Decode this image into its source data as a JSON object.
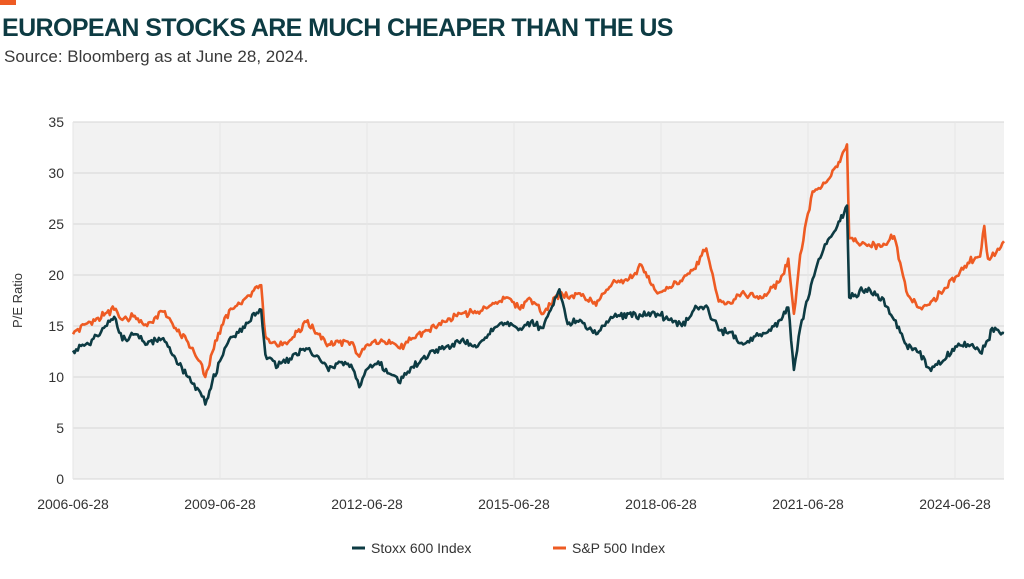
{
  "title": "EUROPEAN STOCKS ARE MUCH CHEAPER THAN THE US",
  "subtitle": "Source: Bloomberg as at June 28, 2024.",
  "colors": {
    "accent": "#ee5b23",
    "title": "#0d3b43",
    "plot_background": "#f2f2f2",
    "gridline": "#d6d6d6"
  },
  "chart_data": {
    "type": "line",
    "title": "EUROPEAN STOCKS ARE MUCH CHEAPER THAN THE US",
    "xlabel": "",
    "ylabel": "P/E Ratio",
    "ylim": [
      0,
      35
    ],
    "yticks": [
      0,
      5,
      10,
      15,
      20,
      25,
      30,
      35
    ],
    "xlim": [
      "2006-06-28",
      "2025-06-28"
    ],
    "xticks": [
      "2006-06-28",
      "2009-06-28",
      "2012-06-28",
      "2015-06-28",
      "2018-06-28",
      "2021-06-28",
      "2024-06-28"
    ],
    "grid": true,
    "legend_position": "bottom",
    "series": [
      {
        "name": "Stoxx 600 Index",
        "color": "#0d3b43",
        "points": [
          [
            "2006-06-28",
            12.6
          ],
          [
            "2006-10-01",
            13.2
          ],
          [
            "2007-01-01",
            14.0
          ],
          [
            "2007-05-01",
            15.9
          ],
          [
            "2007-07-01",
            13.6
          ],
          [
            "2007-10-01",
            14.2
          ],
          [
            "2008-01-01",
            13.2
          ],
          [
            "2008-05-01",
            13.8
          ],
          [
            "2008-08-01",
            11.8
          ],
          [
            "2008-11-01",
            10.0
          ],
          [
            "2009-02-01",
            8.5
          ],
          [
            "2009-03-10",
            7.3
          ],
          [
            "2009-05-01",
            9.5
          ],
          [
            "2009-08-01",
            12.8
          ],
          [
            "2009-11-01",
            14.4
          ],
          [
            "2010-02-01",
            15.4
          ],
          [
            "2010-05-01",
            16.6
          ],
          [
            "2010-06-01",
            12.2
          ],
          [
            "2010-09-01",
            11.0
          ],
          [
            "2010-12-01",
            11.8
          ],
          [
            "2011-04-01",
            12.8
          ],
          [
            "2011-07-01",
            12.0
          ],
          [
            "2011-09-15",
            10.6
          ],
          [
            "2011-12-01",
            11.5
          ],
          [
            "2012-03-01",
            11.2
          ],
          [
            "2012-05-01",
            9.0
          ],
          [
            "2012-07-01",
            10.8
          ],
          [
            "2012-10-01",
            11.2
          ],
          [
            "2013-01-01",
            10.2
          ],
          [
            "2013-03-01",
            9.4
          ],
          [
            "2013-06-01",
            11.0
          ],
          [
            "2013-10-01",
            12.2
          ],
          [
            "2014-02-01",
            12.9
          ],
          [
            "2014-06-01",
            13.6
          ],
          [
            "2014-10-01",
            13.0
          ],
          [
            "2015-02-01",
            14.8
          ],
          [
            "2015-05-01",
            15.2
          ],
          [
            "2015-08-01",
            14.6
          ],
          [
            "2015-11-01",
            15.4
          ],
          [
            "2016-02-01",
            14.8
          ],
          [
            "2016-06-01",
            18.6
          ],
          [
            "2016-08-01",
            15.2
          ],
          [
            "2016-11-01",
            15.6
          ],
          [
            "2017-03-01",
            14.2
          ],
          [
            "2017-07-01",
            15.8
          ],
          [
            "2017-11-01",
            16.2
          ],
          [
            "2018-02-01",
            16.0
          ],
          [
            "2018-06-01",
            16.2
          ],
          [
            "2018-09-01",
            15.6
          ],
          [
            "2018-12-01",
            15.0
          ],
          [
            "2019-03-01",
            16.6
          ],
          [
            "2019-06-01",
            17.0
          ],
          [
            "2019-09-01",
            14.6
          ],
          [
            "2019-12-01",
            14.4
          ],
          [
            "2020-03-01",
            13.2
          ],
          [
            "2020-06-01",
            14.0
          ],
          [
            "2020-09-01",
            14.4
          ],
          [
            "2020-12-01",
            15.6
          ],
          [
            "2021-02-01",
            16.8
          ],
          [
            "2021-03-15",
            10.7
          ],
          [
            "2021-05-01",
            14.8
          ],
          [
            "2021-08-01",
            19.6
          ],
          [
            "2021-11-01",
            23.0
          ],
          [
            "2022-02-01",
            24.8
          ],
          [
            "2022-04-15",
            26.8
          ],
          [
            "2022-05-01",
            17.8
          ],
          [
            "2022-09-01",
            18.6
          ],
          [
            "2023-01-01",
            17.8
          ],
          [
            "2023-04-01",
            15.6
          ],
          [
            "2023-07-01",
            13.2
          ],
          [
            "2023-10-01",
            12.4
          ],
          [
            "2024-01-01",
            10.6
          ],
          [
            "2024-04-01",
            11.6
          ],
          [
            "2024-07-01",
            13.0
          ],
          [
            "2024-10-01",
            13.2
          ],
          [
            "2025-01-01",
            12.4
          ],
          [
            "2025-03-01",
            13.6
          ],
          [
            "2025-04-01",
            14.8
          ],
          [
            "2025-06-28",
            14.3
          ]
        ]
      },
      {
        "name": "S&P 500 Index",
        "color": "#ee5b23",
        "points": [
          [
            "2006-06-28",
            14.2
          ],
          [
            "2006-10-01",
            15.2
          ],
          [
            "2007-01-01",
            15.8
          ],
          [
            "2007-05-01",
            16.6
          ],
          [
            "2007-07-01",
            15.6
          ],
          [
            "2007-10-01",
            16.0
          ],
          [
            "2008-01-01",
            15.0
          ],
          [
            "2008-05-01",
            16.4
          ],
          [
            "2008-08-01",
            14.8
          ],
          [
            "2008-11-01",
            13.4
          ],
          [
            "2009-02-01",
            11.5
          ],
          [
            "2009-03-10",
            10.0
          ],
          [
            "2009-05-01",
            12.4
          ],
          [
            "2009-08-01",
            15.8
          ],
          [
            "2009-11-01",
            17.0
          ],
          [
            "2010-02-01",
            18.0
          ],
          [
            "2010-05-01",
            19.0
          ],
          [
            "2010-06-01",
            14.0
          ],
          [
            "2010-09-01",
            13.0
          ],
          [
            "2010-12-01",
            13.6
          ],
          [
            "2011-04-01",
            15.4
          ],
          [
            "2011-07-01",
            14.2
          ],
          [
            "2011-09-15",
            13.2
          ],
          [
            "2011-12-01",
            13.4
          ],
          [
            "2012-03-01",
            13.4
          ],
          [
            "2012-05-01",
            12.0
          ],
          [
            "2012-07-01",
            13.2
          ],
          [
            "2012-10-01",
            13.4
          ],
          [
            "2013-01-01",
            13.4
          ],
          [
            "2013-03-01",
            12.8
          ],
          [
            "2013-06-01",
            13.8
          ],
          [
            "2013-10-01",
            14.6
          ],
          [
            "2014-02-01",
            15.4
          ],
          [
            "2014-06-01",
            16.2
          ],
          [
            "2014-10-01",
            16.4
          ],
          [
            "2015-02-01",
            17.2
          ],
          [
            "2015-05-01",
            17.8
          ],
          [
            "2015-08-01",
            16.8
          ],
          [
            "2015-11-01",
            17.6
          ],
          [
            "2016-02-01",
            16.2
          ],
          [
            "2016-06-01",
            18.2
          ],
          [
            "2016-08-01",
            17.8
          ],
          [
            "2016-11-01",
            18.2
          ],
          [
            "2017-03-01",
            17.0
          ],
          [
            "2017-07-01",
            19.2
          ],
          [
            "2017-11-01",
            19.6
          ],
          [
            "2018-02-01",
            21.0
          ],
          [
            "2018-06-01",
            18.2
          ],
          [
            "2018-09-01",
            18.8
          ],
          [
            "2018-12-01",
            19.4
          ],
          [
            "2019-03-01",
            20.6
          ],
          [
            "2019-06-01",
            22.6
          ],
          [
            "2019-09-01",
            17.4
          ],
          [
            "2019-12-01",
            17.2
          ],
          [
            "2020-03-01",
            18.4
          ],
          [
            "2020-06-01",
            17.8
          ],
          [
            "2020-09-01",
            18.2
          ],
          [
            "2020-12-01",
            19.4
          ],
          [
            "2021-02-01",
            21.6
          ],
          [
            "2021-03-15",
            16.2
          ],
          [
            "2021-05-01",
            22.0
          ],
          [
            "2021-08-01",
            28.2
          ],
          [
            "2021-11-01",
            29.0
          ],
          [
            "2022-02-01",
            30.6
          ],
          [
            "2022-04-15",
            32.8
          ],
          [
            "2022-05-01",
            23.6
          ],
          [
            "2022-09-01",
            23.0
          ],
          [
            "2023-01-01",
            22.8
          ],
          [
            "2023-04-01",
            23.8
          ],
          [
            "2023-07-01",
            18.4
          ],
          [
            "2023-10-01",
            16.8
          ],
          [
            "2024-01-01",
            17.4
          ],
          [
            "2024-04-01",
            18.4
          ],
          [
            "2024-07-01",
            19.8
          ],
          [
            "2024-10-01",
            21.2
          ],
          [
            "2025-01-01",
            21.8
          ],
          [
            "2025-02-01",
            24.8
          ],
          [
            "2025-03-01",
            21.6
          ],
          [
            "2025-05-01",
            22.2
          ],
          [
            "2025-06-28",
            23.3
          ]
        ]
      }
    ]
  }
}
